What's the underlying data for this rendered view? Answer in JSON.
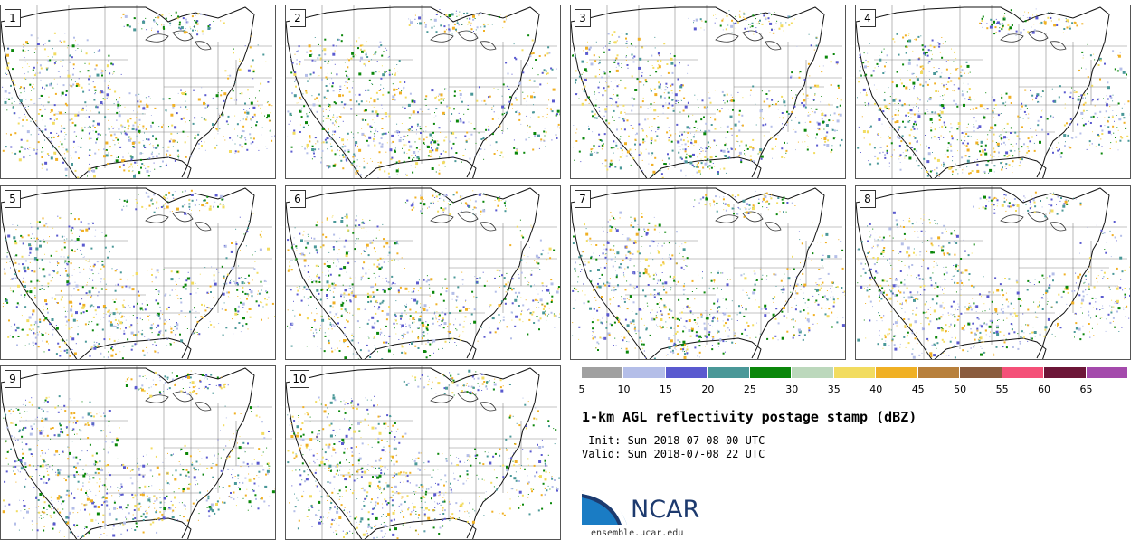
{
  "panels": [
    {
      "label": "1"
    },
    {
      "label": "2"
    },
    {
      "label": "3"
    },
    {
      "label": "4"
    },
    {
      "label": "5"
    },
    {
      "label": "6"
    },
    {
      "label": "7"
    },
    {
      "label": "8"
    },
    {
      "label": "9"
    },
    {
      "label": "10"
    }
  ],
  "colorbar": {
    "colors": [
      "#a0a0a0",
      "#b4bee8",
      "#5a5acf",
      "#4a9898",
      "#0a870a",
      "#bcd8bc",
      "#f2dc60",
      "#f0b024",
      "#b8803c",
      "#8a5c3e",
      "#f45078",
      "#6c1638",
      "#a44aac"
    ],
    "ticks": [
      "5",
      "10",
      "15",
      "20",
      "25",
      "30",
      "35",
      "40",
      "45",
      "50",
      "55",
      "60",
      "65"
    ]
  },
  "title": "1-km AGL reflectivity postage stamp (dBZ)",
  "init": " Init: Sun 2018-07-08 00 UTC",
  "valid": "Valid: Sun 2018-07-08 22 UTC",
  "logo": {
    "text": "NCAR",
    "site": "ensemble.ucar.edu"
  }
}
